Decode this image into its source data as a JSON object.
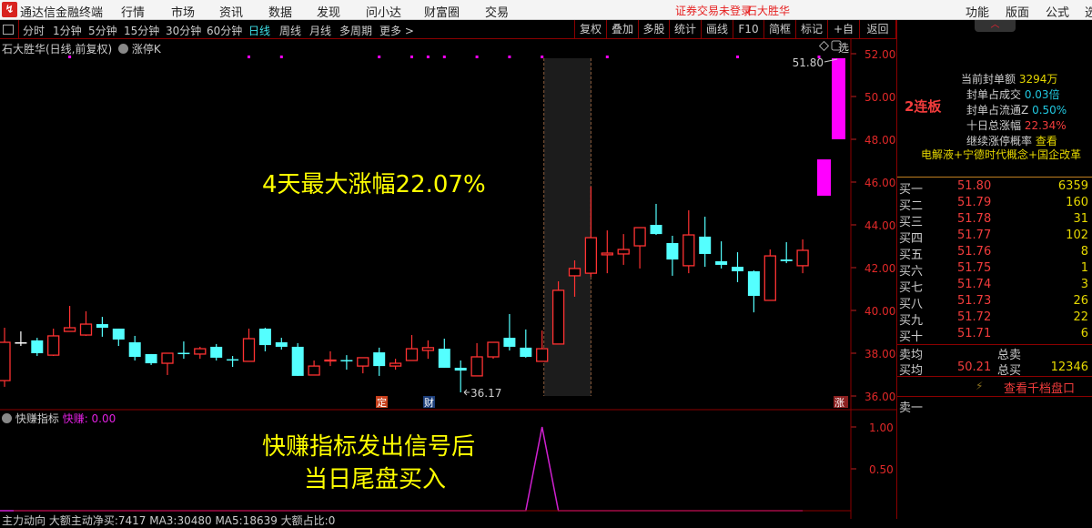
{
  "app": {
    "title": "通达信金融终端",
    "menus": [
      "行情",
      "市场",
      "资讯",
      "数据",
      "发现",
      "问小达",
      "财富圈",
      "交易"
    ],
    "login_status": "证券交易未登录",
    "stock_name": "石大胜华",
    "right_menus": [
      "功能",
      "版面",
      "公式",
      "选"
    ]
  },
  "toolbar": {
    "periods": [
      "分时",
      "1分钟",
      "5分钟",
      "15分钟",
      "30分钟",
      "60分钟",
      "日线",
      "周线",
      "月线",
      "多周期",
      "更多 >"
    ],
    "active_period": "日线",
    "buttons": [
      "复权",
      "叠加",
      "多股",
      "统计",
      "画线",
      "F10",
      "简框",
      "标记",
      "+自选",
      "返回"
    ]
  },
  "chart": {
    "title": "石大胜华(日线,前复权)",
    "indicator_tag": "涨停K",
    "annotation": "4天最大涨幅22.07%",
    "last_price_label": "51.80",
    "low_label": "36.17",
    "markers": [
      "定",
      "财",
      "涨"
    ]
  },
  "indicator": {
    "name": "快赚指标",
    "series_label": "快赚",
    "value": "0.00",
    "annotation_line1": "快赚指标发出信号后",
    "annotation_line2": "当日尾盘买入",
    "color": "#d020d0"
  },
  "bottom_strip": {
    "text": "主力动向 大额主动净买:7417 MA3:30480 MA5:18639 大额占比:0"
  },
  "right_panel": {
    "streak": "2连板",
    "info": [
      {
        "label": "当前封单额",
        "value": "3294万",
        "color": "yellow"
      },
      {
        "label": "封单占成交",
        "value": "0.03倍",
        "color": "cyan"
      },
      {
        "label": "封单占流通Z",
        "value": "0.50%",
        "color": "cyan"
      },
      {
        "label": "十日总涨幅",
        "value": "22.34%",
        "color": "red"
      },
      {
        "label": "继续涨停概率",
        "value": "查看",
        "color": "yellow"
      }
    ],
    "concepts": "电解液+宁德时代概念+国企改革",
    "bids": [
      {
        "label": "买一",
        "price": "51.80",
        "vol": "6359"
      },
      {
        "label": "买二",
        "price": "51.79",
        "vol": "160"
      },
      {
        "label": "买三",
        "price": "51.78",
        "vol": "31"
      },
      {
        "label": "买四",
        "price": "51.77",
        "vol": "102"
      },
      {
        "label": "买五",
        "price": "51.76",
        "vol": "8"
      },
      {
        "label": "买六",
        "price": "51.75",
        "vol": "1"
      },
      {
        "label": "买七",
        "price": "51.74",
        "vol": "3"
      },
      {
        "label": "买八",
        "price": "51.73",
        "vol": "26"
      },
      {
        "label": "买九",
        "price": "51.72",
        "vol": "22"
      },
      {
        "label": "买十",
        "price": "51.71",
        "vol": "6"
      }
    ],
    "sell_avg_label": "卖均",
    "total_sell_label": "总卖",
    "buy_avg_label": "买均",
    "buy_avg": "50.21",
    "total_buy_label": "总买",
    "total_buy": "12346",
    "depth_link": "查看千档盘口",
    "ask1_label": "卖一"
  },
  "chart_data": {
    "type": "candlestick",
    "y_ticks": [
      "52.00",
      "50.00",
      "48.00",
      "46.00",
      "44.00",
      "42.00",
      "40.00",
      "38.00",
      "36.00"
    ],
    "ylim": [
      36,
      52
    ],
    "colors": {
      "up": "#ff3232",
      "down": "#54ffff",
      "flat": "#ffffff",
      "projection": "#ff00ff"
    },
    "ohlc": [
      [
        36.72,
        39.19,
        36.43,
        38.51
      ],
      [
        38.51,
        39.02,
        38.34,
        38.51
      ],
      [
        38.6,
        38.72,
        37.87,
        38.0
      ],
      [
        37.91,
        39.15,
        37.87,
        38.81
      ],
      [
        39.02,
        40.21,
        39.02,
        39.19
      ],
      [
        38.85,
        39.96,
        38.81,
        39.36
      ],
      [
        39.36,
        39.7,
        38.77,
        39.19
      ],
      [
        39.15,
        39.15,
        38.34,
        38.64
      ],
      [
        38.51,
        38.81,
        37.66,
        37.83
      ],
      [
        37.96,
        37.96,
        37.45,
        37.53
      ],
      [
        37.53,
        38.0,
        36.98,
        38.0
      ],
      [
        38.02,
        38.55,
        37.74,
        37.98
      ],
      [
        37.96,
        38.3,
        37.74,
        38.21
      ],
      [
        38.3,
        38.43,
        37.66,
        37.79
      ],
      [
        37.72,
        37.87,
        37.36,
        37.68
      ],
      [
        37.62,
        39.15,
        37.62,
        38.68
      ],
      [
        39.15,
        39.19,
        38.09,
        38.38
      ],
      [
        38.51,
        38.72,
        38.17,
        38.3
      ],
      [
        38.3,
        38.47,
        36.94,
        36.94
      ],
      [
        36.98,
        37.66,
        36.98,
        37.4
      ],
      [
        37.64,
        38.09,
        37.4,
        37.68
      ],
      [
        37.68,
        37.91,
        37.23,
        37.64
      ],
      [
        37.4,
        37.79,
        37.06,
        37.79
      ],
      [
        38.04,
        38.26,
        36.94,
        37.4
      ],
      [
        37.4,
        37.74,
        37.23,
        37.53
      ],
      [
        37.66,
        38.85,
        37.66,
        38.21
      ],
      [
        38.13,
        38.6,
        37.74,
        38.26
      ],
      [
        38.21,
        38.68,
        37.32,
        37.32
      ],
      [
        37.32,
        37.66,
        36.17,
        37.19
      ],
      [
        36.94,
        38.47,
        36.94,
        37.83
      ],
      [
        37.83,
        38.51,
        37.74,
        38.51
      ],
      [
        38.72,
        39.83,
        38.13,
        38.3
      ],
      [
        38.26,
        39.11,
        37.79,
        37.83
      ],
      [
        37.62,
        39.06,
        37.62,
        38.21
      ],
      [
        38.43,
        41.36,
        38.43,
        40.94
      ],
      [
        41.62,
        42.34,
        40.64,
        41.96
      ],
      [
        41.74,
        45.79,
        41.57,
        43.4
      ],
      [
        42.6,
        43.74,
        41.74,
        42.68
      ],
      [
        42.64,
        43.57,
        42.13,
        42.85
      ],
      [
        43.02,
        43.87,
        41.96,
        43.87
      ],
      [
        44.0,
        44.98,
        43.53,
        43.57
      ],
      [
        43.15,
        43.49,
        41.62,
        42.38
      ],
      [
        42.09,
        44.68,
        41.74,
        43.53
      ],
      [
        43.45,
        44.38,
        42.04,
        42.64
      ],
      [
        42.3,
        43.23,
        41.96,
        42.13
      ],
      [
        42.04,
        42.72,
        41.32,
        41.83
      ],
      [
        41.83,
        41.87,
        39.91,
        40.68
      ],
      [
        40.47,
        42.85,
        40.47,
        42.55
      ],
      [
        42.38,
        43.19,
        42.21,
        42.3
      ],
      [
        42.09,
        43.32,
        41.74,
        42.81
      ]
    ],
    "projection_bars": [
      [
        45.36,
        47.06
      ],
      [
        48.0,
        51.79
      ]
    ],
    "signal_dots": [
      4,
      15,
      17,
      23,
      25,
      26,
      27,
      29,
      31,
      33,
      37,
      45,
      50
    ],
    "highlight_range": [
      33,
      36
    ],
    "indicator": {
      "values_nonzero": {
        "33": 1
      },
      "y_ticks": [
        "1.00",
        "0.50"
      ],
      "ylim": [
        0,
        1
      ]
    }
  }
}
